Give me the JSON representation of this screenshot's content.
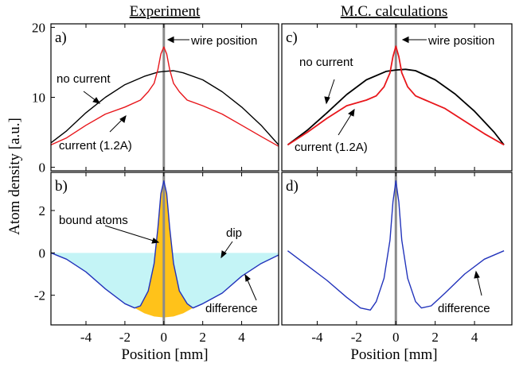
{
  "titles": {
    "left": "Experiment",
    "right": "M.C. calculations"
  },
  "ylabel": "Atom density [a.u.]",
  "xlabel": "Position [mm]",
  "panel_labels": {
    "a": "a)",
    "b": "b)",
    "c": "c)",
    "d": "d)"
  },
  "annotations": {
    "wire_position": "wire position",
    "no_current": "no current",
    "current": "current (1.2A)",
    "bound_atoms": "bound atoms",
    "dip": "dip",
    "difference": "difference"
  },
  "colors": {
    "no_current": "#000000",
    "current": "#e8161b",
    "difference": "#2233bb",
    "wire": "#8a8a8a",
    "bound_fill": "#ffc21a",
    "dip_fill": "#c4f4f6"
  },
  "chart_data": [
    {
      "panel": "a",
      "type": "line",
      "title": "Experiment",
      "xlim": [
        -5.8,
        5.9
      ],
      "ylim": [
        -0.5,
        20.5
      ],
      "xticks": [
        -4,
        -2,
        0,
        2,
        4
      ],
      "yticks": [
        0,
        10,
        20
      ],
      "ytick_labels": [
        "0",
        "10",
        "20"
      ],
      "series": [
        {
          "name": "no current",
          "x": [
            -5.8,
            -5,
            -4,
            -3,
            -2,
            -1,
            -0.3,
            0,
            0.5,
            1,
            2,
            3,
            4,
            5,
            5.9
          ],
          "y": [
            3.5,
            5.2,
            7.8,
            10.0,
            11.8,
            13.0,
            13.6,
            13.7,
            13.8,
            13.5,
            12.5,
            10.8,
            8.6,
            6.0,
            3.2
          ]
        },
        {
          "name": "current (1.2A)",
          "x": [
            -5.8,
            -5,
            -4,
            -3,
            -2,
            -1.2,
            -0.8,
            -0.5,
            -0.3,
            -0.15,
            0,
            0.15,
            0.3,
            0.5,
            0.8,
            1.2,
            2,
            3,
            4,
            5,
            5.9
          ],
          "y": [
            3.2,
            4.2,
            6.0,
            7.6,
            8.6,
            9.6,
            10.8,
            12.0,
            14.0,
            16.2,
            17.2,
            16.2,
            14.0,
            12.0,
            10.8,
            9.6,
            8.8,
            7.6,
            6.0,
            4.4,
            3.0
          ]
        }
      ]
    },
    {
      "panel": "b",
      "type": "line",
      "xlim": [
        -5.8,
        5.9
      ],
      "ylim": [
        -3.4,
        3.8
      ],
      "xticks": [
        -4,
        -2,
        0,
        2,
        4
      ],
      "xtick_labels": [
        "-4",
        "-2",
        "0",
        "2",
        "4"
      ],
      "yticks": [
        -2,
        0,
        2
      ],
      "ytick_labels": [
        "-2",
        "0",
        "2"
      ],
      "series": [
        {
          "name": "difference",
          "x": [
            -5.8,
            -5,
            -4,
            -3,
            -2,
            -1.5,
            -1.2,
            -0.8,
            -0.5,
            -0.3,
            -0.15,
            0,
            0.15,
            0.3,
            0.5,
            0.8,
            1.2,
            1.5,
            2,
            3,
            4,
            5,
            5.9
          ],
          "y": [
            0.0,
            -0.3,
            -0.9,
            -1.7,
            -2.4,
            -2.6,
            -2.5,
            -1.8,
            -0.5,
            1.2,
            2.8,
            3.4,
            2.8,
            1.2,
            -0.5,
            -1.8,
            -2.4,
            -2.6,
            -2.4,
            -1.9,
            -1.1,
            -0.5,
            -0.1
          ]
        }
      ]
    },
    {
      "panel": "c",
      "type": "line",
      "title": "M.C. calculations",
      "xlim": [
        -5.8,
        5.9
      ],
      "ylim": [
        -0.5,
        20.5
      ],
      "xticks": [
        -4,
        -2,
        0,
        2,
        4
      ],
      "series": [
        {
          "name": "no current",
          "x": [
            -5.5,
            -4.5,
            -3.5,
            -2.5,
            -1.5,
            -0.5,
            0,
            0.5,
            1,
            2,
            3,
            4,
            5,
            5.5
          ],
          "y": [
            3.2,
            5.3,
            7.8,
            10.4,
            12.5,
            13.7,
            13.9,
            14.0,
            13.8,
            12.5,
            10.5,
            8.0,
            5.0,
            3.2
          ]
        },
        {
          "name": "current (1.2A)",
          "x": [
            -5.5,
            -4.5,
            -3.5,
            -2.5,
            -1.5,
            -1,
            -0.6,
            -0.3,
            -0.15,
            0,
            0.15,
            0.3,
            0.6,
            1,
            1.5,
            2.5,
            3.5,
            4.5,
            5.5
          ],
          "y": [
            3.2,
            5.0,
            7.0,
            8.8,
            9.6,
            10.2,
            11.5,
            13.5,
            15.8,
            17.3,
            15.8,
            13.5,
            11.5,
            10.2,
            9.6,
            8.4,
            6.6,
            4.8,
            3.2
          ]
        }
      ]
    },
    {
      "panel": "d",
      "type": "line",
      "xlim": [
        -5.8,
        5.9
      ],
      "ylim": [
        -3.4,
        3.8
      ],
      "xticks": [
        -4,
        -2,
        0,
        2,
        4
      ],
      "xtick_labels": [
        "-4",
        "-2",
        "0",
        "2",
        "4"
      ],
      "series": [
        {
          "name": "difference",
          "x": [
            -5.5,
            -4.5,
            -3.5,
            -2.5,
            -1.8,
            -1.3,
            -1,
            -0.6,
            -0.3,
            -0.15,
            0,
            0.15,
            0.3,
            0.6,
            1,
            1.3,
            1.8,
            2.5,
            3.5,
            4.5,
            5.5
          ],
          "y": [
            0.1,
            -0.6,
            -1.3,
            -2.1,
            -2.6,
            -2.7,
            -2.3,
            -1.2,
            0.6,
            2.4,
            3.4,
            2.4,
            0.6,
            -1.2,
            -2.3,
            -2.6,
            -2.5,
            -1.9,
            -1.0,
            -0.3,
            0.1
          ]
        }
      ]
    }
  ]
}
